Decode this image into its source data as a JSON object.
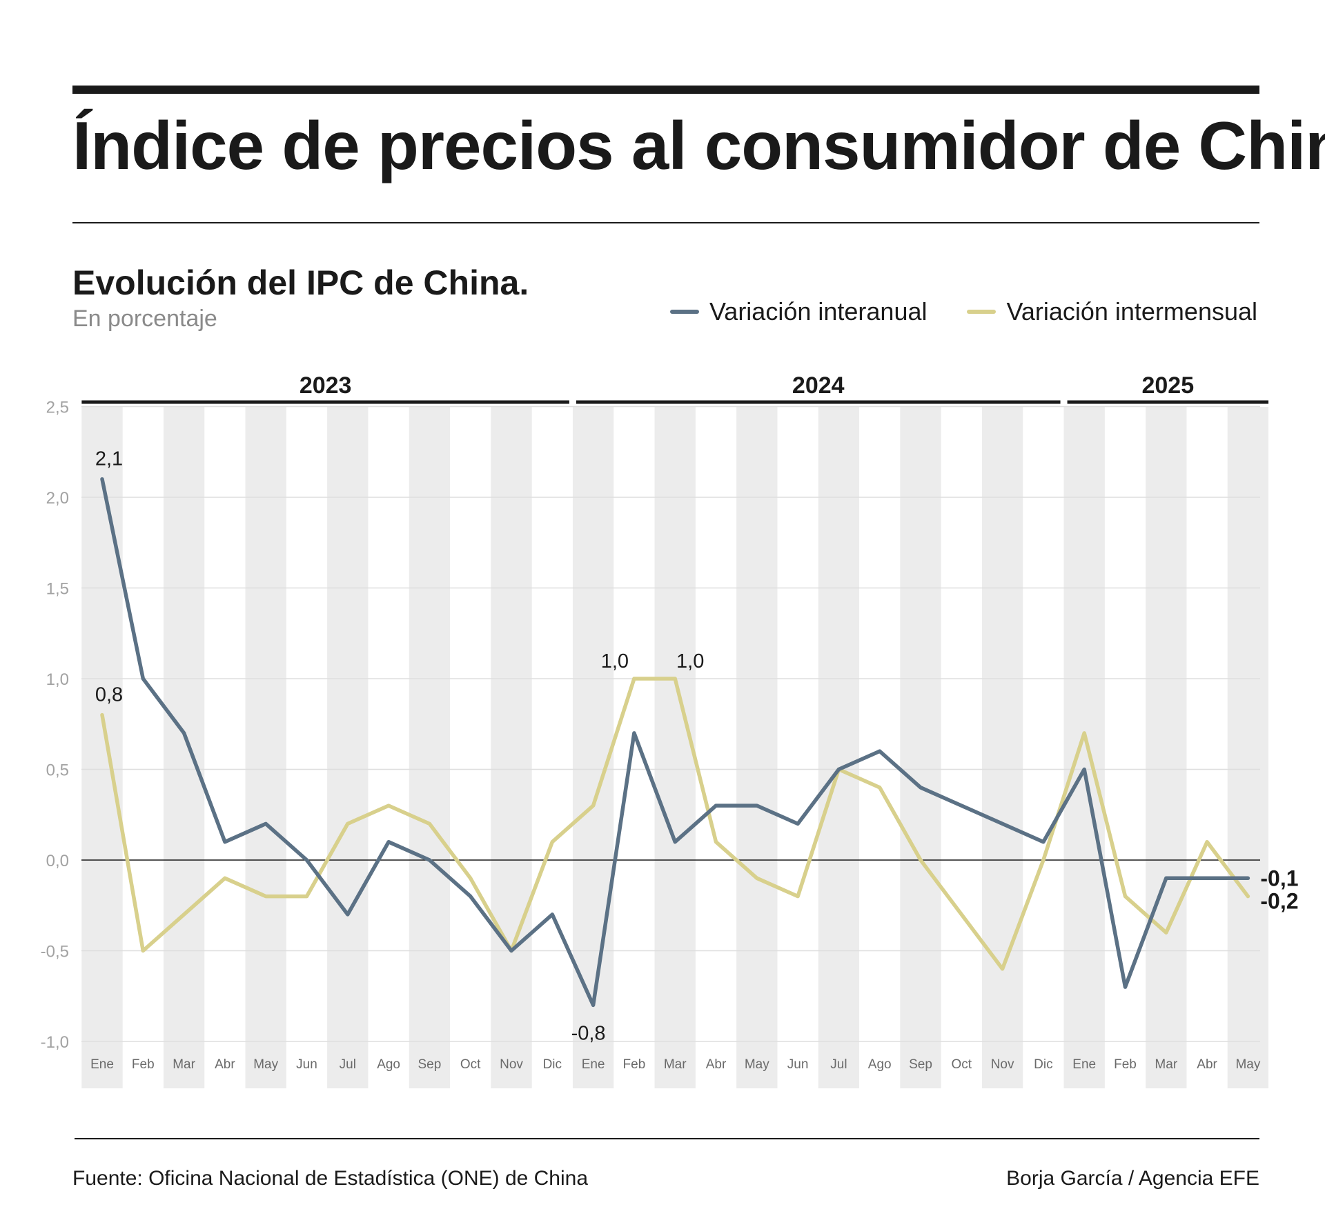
{
  "header": {
    "title": "Índice de precios al consumidor de China",
    "subtitle": "Evolución del IPC de China.",
    "unit": "En porcentaje"
  },
  "footer": {
    "source": "Fuente: Oficina Nacional de Estadística (ONE) de China",
    "credit": "Borja García / Agencia EFE"
  },
  "chart_data": {
    "type": "line",
    "title": "Evolución del IPC de China.",
    "ylabel": "En porcentaje",
    "xlabel": "",
    "ylim": [
      -1.0,
      2.5
    ],
    "yticks": [
      2.5,
      2.0,
      1.5,
      1.0,
      0.5,
      0.0,
      -0.5,
      -1.0
    ],
    "ytick_labels": [
      "2,5",
      "2,0",
      "1,5",
      "1,0",
      "0,5",
      "0,0",
      "-0,5",
      "-1,0"
    ],
    "legend_position": "top-right",
    "years": [
      {
        "label": "2023",
        "months": 12
      },
      {
        "label": "2024",
        "months": 12
      },
      {
        "label": "2025",
        "months": 5
      }
    ],
    "categories": [
      "Ene",
      "Feb",
      "Mar",
      "Abr",
      "May",
      "Jun",
      "Jul",
      "Ago",
      "Sep",
      "Oct",
      "Nov",
      "Dic",
      "Ene",
      "Feb",
      "Mar",
      "Abr",
      "May",
      "Jun",
      "Jul",
      "Ago",
      "Sep",
      "Oct",
      "Nov",
      "Dic",
      "Ene",
      "Feb",
      "Mar",
      "Abr",
      "May"
    ],
    "series": [
      {
        "name": "Variación interanual",
        "color": "#5b7185",
        "values": [
          2.1,
          1.0,
          0.7,
          0.1,
          0.2,
          0.0,
          -0.3,
          0.1,
          0.0,
          -0.2,
          -0.5,
          -0.3,
          -0.8,
          0.7,
          0.1,
          0.3,
          0.3,
          0.2,
          0.5,
          0.6,
          0.4,
          0.3,
          0.2,
          0.1,
          0.5,
          -0.7,
          -0.1,
          -0.1,
          -0.1
        ]
      },
      {
        "name": "Variación intermensual",
        "color": "#d8d08c",
        "values": [
          0.8,
          -0.5,
          -0.3,
          -0.1,
          -0.2,
          -0.2,
          0.2,
          0.3,
          0.2,
          -0.1,
          -0.5,
          0.1,
          0.3,
          1.0,
          1.0,
          0.1,
          -0.1,
          -0.2,
          0.5,
          0.4,
          0.0,
          -0.3,
          -0.6,
          0.0,
          0.7,
          -0.2,
          -0.4,
          0.1,
          -0.2
        ]
      }
    ],
    "annotations": [
      {
        "series": 0,
        "index": 0,
        "text": "2,1",
        "pos": "above"
      },
      {
        "series": 1,
        "index": 0,
        "text": "0,8",
        "pos": "above"
      },
      {
        "series": 1,
        "index": 13,
        "text": "1,0",
        "pos": "above-left"
      },
      {
        "series": 1,
        "index": 14,
        "text": "1,0",
        "pos": "above-right"
      },
      {
        "series": 0,
        "index": 12,
        "text": "-0,8",
        "pos": "below"
      },
      {
        "series": 0,
        "index": 28,
        "text": "-0,1",
        "pos": "end-upper"
      },
      {
        "series": 1,
        "index": 28,
        "text": "-0,2",
        "pos": "end-lower"
      }
    ]
  }
}
